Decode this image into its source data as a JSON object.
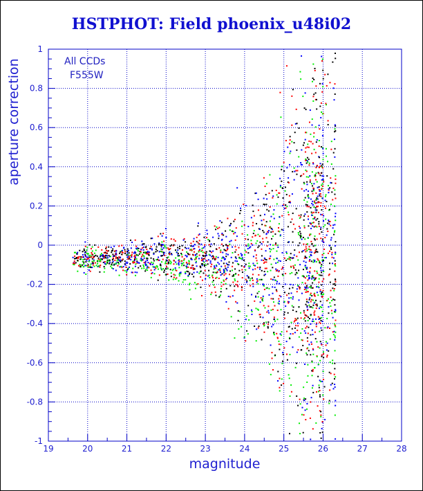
{
  "chart_data": {
    "type": "scatter",
    "title": "HSTPHOT: Field phoenix_u48i02",
    "xlabel": "magnitude",
    "ylabel": "aperture correction",
    "xlim": [
      19,
      28
    ],
    "ylim": [
      -1,
      1
    ],
    "x_ticks": [
      "19",
      "20",
      "21",
      "22",
      "23",
      "24",
      "25",
      "26",
      "27",
      "28"
    ],
    "y_ticks": [
      "-1",
      "-0.8",
      "-0.6",
      "-0.4",
      "-0.2",
      "0",
      "0.2",
      "0.4",
      "0.6",
      "0.8",
      "1"
    ],
    "grid": true,
    "annotations": [
      "All CCDs",
      "F555W"
    ],
    "marker_colors": [
      "#000000",
      "#ff0000",
      "#00ee00",
      "#0000ff"
    ],
    "axis_color": "#0000c8",
    "grid_color": "#0000c8",
    "distribution": {
      "description_points": [
        {
          "x": 20.5,
          "y_center": -0.06,
          "y_spread": 0.03
        },
        {
          "x": 21.5,
          "y_center": -0.05,
          "y_spread": 0.04
        },
        {
          "x": 22.5,
          "y_center": -0.06,
          "y_spread": 0.06
        },
        {
          "x": 23.5,
          "y_center": -0.07,
          "y_spread": 0.1
        },
        {
          "x": 24.5,
          "y_center": -0.09,
          "y_spread": 0.22
        },
        {
          "x": 25.5,
          "y_center": -0.05,
          "y_spread": 0.45
        },
        {
          "x": 26.0,
          "y_center": -0.05,
          "y_spread": 0.5
        }
      ],
      "green_offset": -0.06,
      "point_count": 2400,
      "mag_max": 26.3,
      "mag_min": 19.6
    }
  }
}
